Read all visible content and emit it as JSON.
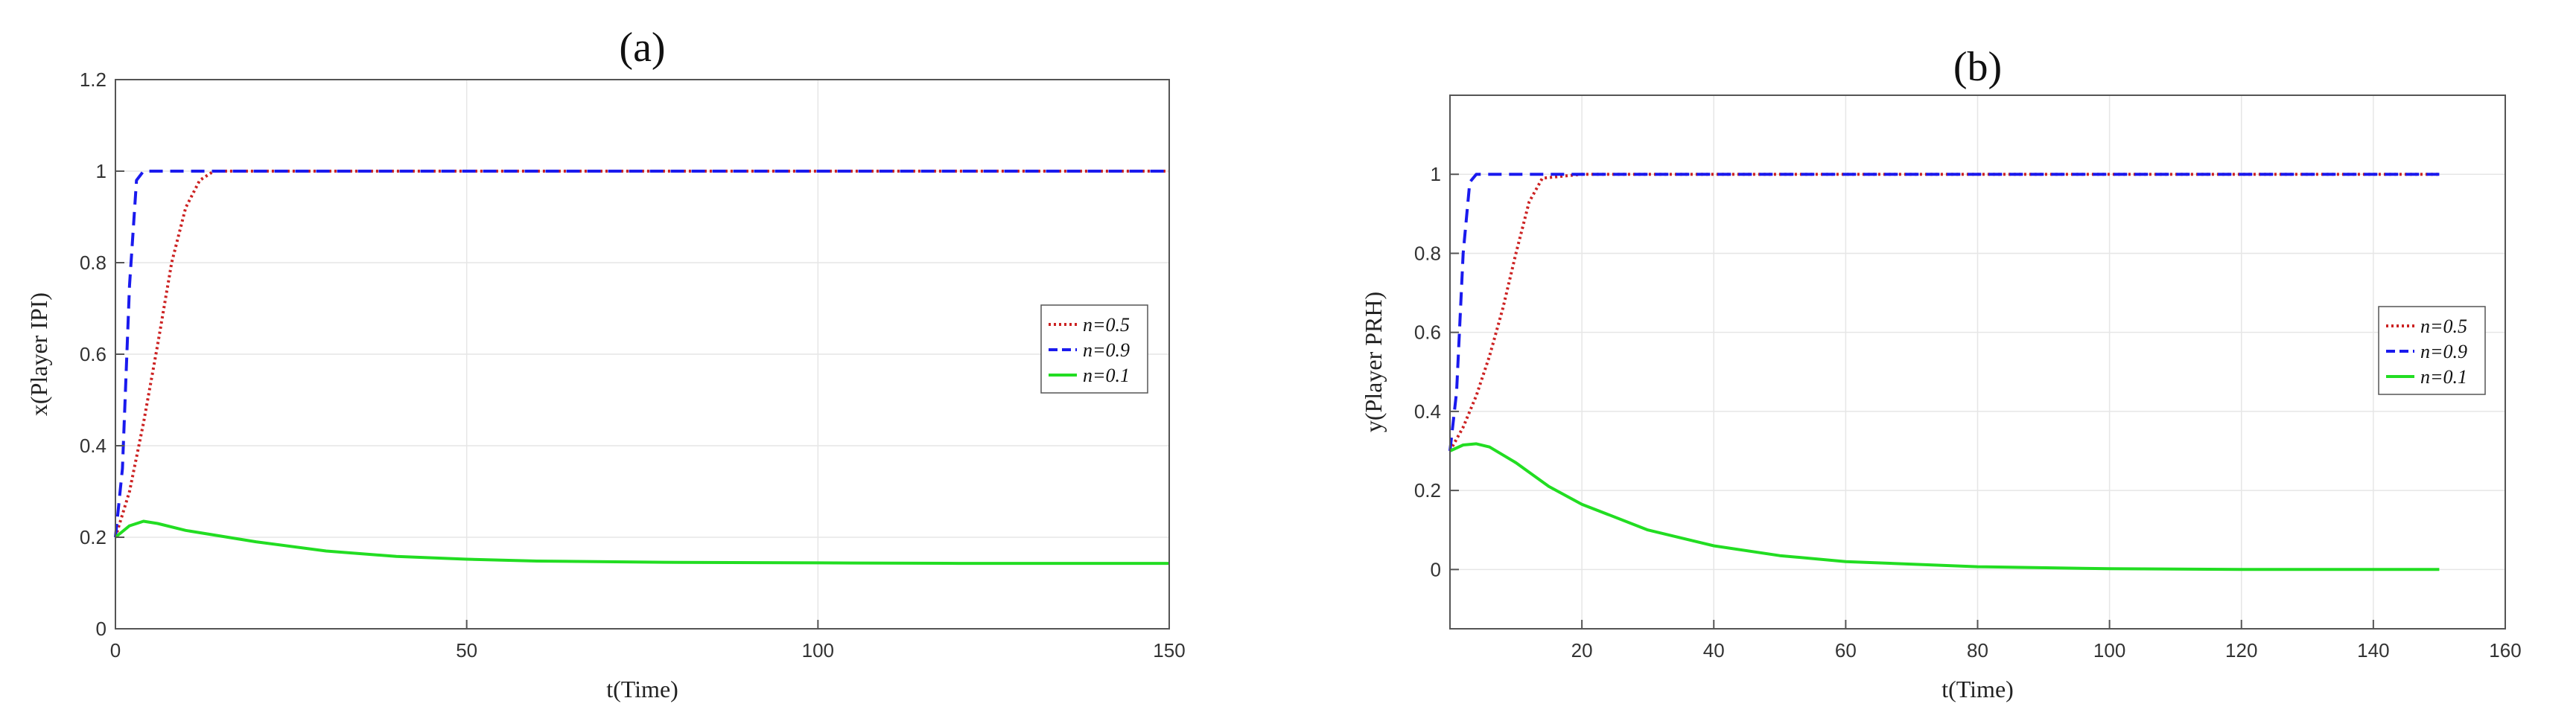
{
  "chart_data": [
    {
      "type": "line",
      "title": "(a)",
      "xlabel": "t(Time)",
      "ylabel": "x(Player IPI)",
      "xlim": [
        0,
        150
      ],
      "ylim": [
        0,
        1.2
      ],
      "xticks": [
        0,
        50,
        100,
        150
      ],
      "yticks": [
        0,
        0.2,
        0.4,
        0.6,
        0.8,
        1,
        1.2
      ],
      "grid": true,
      "legend_position": "right-middle",
      "series": [
        {
          "name": "n=0.5",
          "color": "#cc2222",
          "style": "dotted",
          "x": [
            0,
            2,
            4,
            6,
            8,
            10,
            12,
            14,
            20,
            50,
            100,
            150
          ],
          "y": [
            0.2,
            0.3,
            0.45,
            0.62,
            0.8,
            0.92,
            0.98,
            1.0,
            1.0,
            1.0,
            1.0,
            1.0
          ]
        },
        {
          "name": "n=0.9",
          "color": "#1a1aee",
          "style": "dashed",
          "x": [
            0,
            1,
            2,
            3,
            4,
            6,
            50,
            100,
            150
          ],
          "y": [
            0.2,
            0.35,
            0.75,
            0.98,
            1.0,
            1.0,
            1.0,
            1.0,
            1.0
          ]
        },
        {
          "name": "n=0.1",
          "color": "#22dd22",
          "style": "solid",
          "x": [
            0,
            2,
            4,
            6,
            10,
            20,
            30,
            40,
            50,
            60,
            80,
            100,
            120,
            150
          ],
          "y": [
            0.2,
            0.225,
            0.235,
            0.23,
            0.215,
            0.19,
            0.17,
            0.158,
            0.152,
            0.148,
            0.145,
            0.144,
            0.143,
            0.143
          ]
        }
      ]
    },
    {
      "type": "line",
      "title": "(b)",
      "xlabel": "t(Time)",
      "ylabel": "y(Player PRH)",
      "xlim": [
        0,
        160
      ],
      "ylim": [
        -0.15,
        1.2
      ],
      "xticks": [
        20,
        40,
        60,
        80,
        100,
        120,
        140,
        160
      ],
      "yticks": [
        0,
        0.2,
        0.4,
        0.6,
        0.8,
        1
      ],
      "grid": true,
      "legend_position": "right-middle",
      "series": [
        {
          "name": "n=0.5",
          "color": "#cc2222",
          "style": "dotted",
          "x": [
            0,
            2,
            4,
            6,
            8,
            10,
            12,
            14,
            20,
            60,
            100,
            150
          ],
          "y": [
            0.3,
            0.36,
            0.44,
            0.54,
            0.66,
            0.8,
            0.93,
            0.99,
            1.0,
            1.0,
            1.0,
            1.0
          ]
        },
        {
          "name": "n=0.9",
          "color": "#1a1aee",
          "style": "dashed",
          "x": [
            0,
            1,
            2,
            3,
            4,
            6,
            60,
            100,
            150
          ],
          "y": [
            0.3,
            0.45,
            0.8,
            0.98,
            1.0,
            1.0,
            1.0,
            1.0,
            1.0
          ]
        },
        {
          "name": "n=0.1",
          "color": "#22dd22",
          "style": "solid",
          "x": [
            0,
            2,
            4,
            6,
            10,
            15,
            20,
            30,
            40,
            50,
            60,
            80,
            100,
            120,
            150
          ],
          "y": [
            0.3,
            0.315,
            0.318,
            0.31,
            0.27,
            0.21,
            0.165,
            0.1,
            0.06,
            0.035,
            0.02,
            0.007,
            0.002,
            0.0,
            0.0
          ]
        }
      ]
    }
  ]
}
